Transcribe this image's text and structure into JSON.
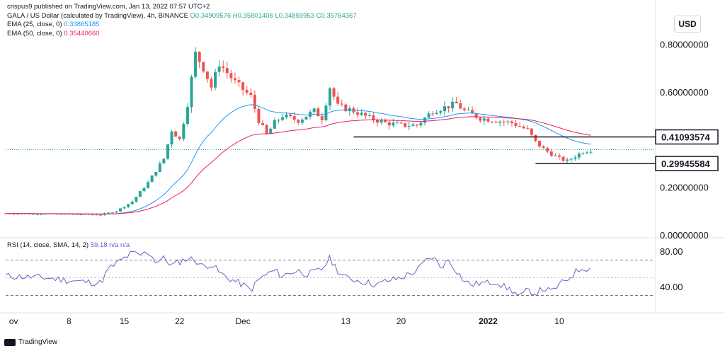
{
  "attribution": {
    "author": "crispus9",
    "published": "published on TradingView.com, Jan 13, 2022 07:57 UTC+2"
  },
  "header": {
    "symbol": "GALA / US Dollar (calculated by TradingView), 4h, BINANCE",
    "ohlc": "O0.34909576 H0.35801406 L0.34859953 C0.35764367",
    "ema25_label": "EMA (25, close, 0)",
    "ema25_value": "0.33865185",
    "ema50_label": "EMA (50, close, 0)",
    "ema50_value": "0.35440660"
  },
  "currency": "USD",
  "footer": {
    "brand": "TradingView"
  },
  "colors": {
    "up": "#26a69a",
    "down": "#ef5350",
    "ema25": "#2196f3",
    "ema50": "#e91e63",
    "rsi": "#7e57c2"
  },
  "chart_data": {
    "type": "candlestick",
    "price_axis": {
      "ticks": [
        "0.80000000",
        "0.60000000",
        "0.20000000",
        "0.00000000"
      ],
      "tick_values": [
        0.8,
        0.6,
        0.2,
        0.0
      ]
    },
    "x_ticks": [
      {
        "label": "ov",
        "day": 1
      },
      {
        "label": "8",
        "day": 8
      },
      {
        "label": "15",
        "day": 15
      },
      {
        "label": "22",
        "day": 22
      },
      {
        "label": "Dec",
        "day": 30
      },
      {
        "label": "13",
        "day": 43
      },
      {
        "label": "20",
        "day": 50
      },
      {
        "label": "2022",
        "day": 61,
        "bold": true
      },
      {
        "label": "10",
        "day": 70
      }
    ],
    "price_levels": [
      {
        "label": "0.41093574",
        "value": 0.41093574
      },
      {
        "label": "0.29945584",
        "value": 0.29945584
      }
    ],
    "last_price": 0.35764367,
    "price_path": [
      [
        0,
        0.09
      ],
      [
        12,
        0.085
      ],
      [
        14,
        0.1
      ],
      [
        16,
        0.14
      ],
      [
        18,
        0.22
      ],
      [
        20,
        0.32
      ],
      [
        21,
        0.44
      ],
      [
        22,
        0.4
      ],
      [
        23,
        0.55
      ],
      [
        24,
        0.76
      ],
      [
        25,
        0.7
      ],
      [
        26,
        0.62
      ],
      [
        27,
        0.72
      ],
      [
        28,
        0.68
      ],
      [
        29,
        0.64
      ],
      [
        31,
        0.58
      ],
      [
        32,
        0.48
      ],
      [
        33,
        0.42
      ],
      [
        34,
        0.47
      ],
      [
        35,
        0.5
      ],
      [
        37,
        0.48
      ],
      [
        39,
        0.52
      ],
      [
        40,
        0.49
      ],
      [
        41,
        0.62
      ],
      [
        42,
        0.54
      ],
      [
        44,
        0.52
      ],
      [
        46,
        0.49
      ],
      [
        48,
        0.47
      ],
      [
        50,
        0.46
      ],
      [
        52,
        0.46
      ],
      [
        54,
        0.52
      ],
      [
        55,
        0.53
      ],
      [
        57,
        0.55
      ],
      [
        58,
        0.52
      ],
      [
        60,
        0.49
      ],
      [
        62,
        0.48
      ],
      [
        64,
        0.47
      ],
      [
        66,
        0.44
      ],
      [
        67,
        0.39
      ],
      [
        68,
        0.36
      ],
      [
        69,
        0.34
      ],
      [
        70,
        0.32
      ],
      [
        71,
        0.31
      ],
      [
        72,
        0.33
      ],
      [
        73,
        0.35
      ],
      [
        74,
        0.357
      ]
    ],
    "rsi": {
      "label": "RSI (14, close, SMA, 14, 2)",
      "value_text": "59.18 n/a n/a",
      "ticks": [
        "80.00",
        "40.00"
      ],
      "tick_values": [
        80,
        40
      ],
      "band_upper": 70,
      "band_lower": 30,
      "mid": 50,
      "path": [
        [
          0,
          52
        ],
        [
          5,
          50
        ],
        [
          9,
          46
        ],
        [
          12,
          44
        ],
        [
          13,
          60
        ],
        [
          14,
          66
        ],
        [
          15,
          72
        ],
        [
          16,
          78
        ],
        [
          17,
          75
        ],
        [
          18,
          80
        ],
        [
          19,
          68
        ],
        [
          20,
          72
        ],
        [
          21,
          64
        ],
        [
          22,
          68
        ],
        [
          23,
          72
        ],
        [
          24,
          70
        ],
        [
          25,
          62
        ],
        [
          26,
          66
        ],
        [
          27,
          56
        ],
        [
          28,
          50
        ],
        [
          29,
          46
        ],
        [
          30,
          42
        ],
        [
          31,
          36
        ],
        [
          32,
          48
        ],
        [
          33,
          54
        ],
        [
          34,
          58
        ],
        [
          35,
          52
        ],
        [
          36,
          56
        ],
        [
          37,
          58
        ],
        [
          38,
          54
        ],
        [
          39,
          56
        ],
        [
          40,
          60
        ],
        [
          41,
          72
        ],
        [
          42,
          58
        ],
        [
          43,
          50
        ],
        [
          44,
          48
        ],
        [
          45,
          46
        ],
        [
          46,
          44
        ],
        [
          47,
          42
        ],
        [
          48,
          46
        ],
        [
          49,
          48
        ],
        [
          50,
          50
        ],
        [
          51,
          54
        ],
        [
          52,
          58
        ],
        [
          53,
          68
        ],
        [
          54,
          74
        ],
        [
          55,
          62
        ],
        [
          56,
          70
        ],
        [
          57,
          58
        ],
        [
          58,
          46
        ],
        [
          59,
          42
        ],
        [
          60,
          44
        ],
        [
          61,
          44
        ],
        [
          62,
          46
        ],
        [
          63,
          40
        ],
        [
          64,
          36
        ],
        [
          65,
          28
        ],
        [
          66,
          36
        ],
        [
          67,
          32
        ],
        [
          68,
          38
        ],
        [
          69,
          34
        ],
        [
          70,
          42
        ],
        [
          71,
          48
        ],
        [
          72,
          56
        ],
        [
          73,
          62
        ],
        [
          74,
          59
        ]
      ]
    }
  }
}
